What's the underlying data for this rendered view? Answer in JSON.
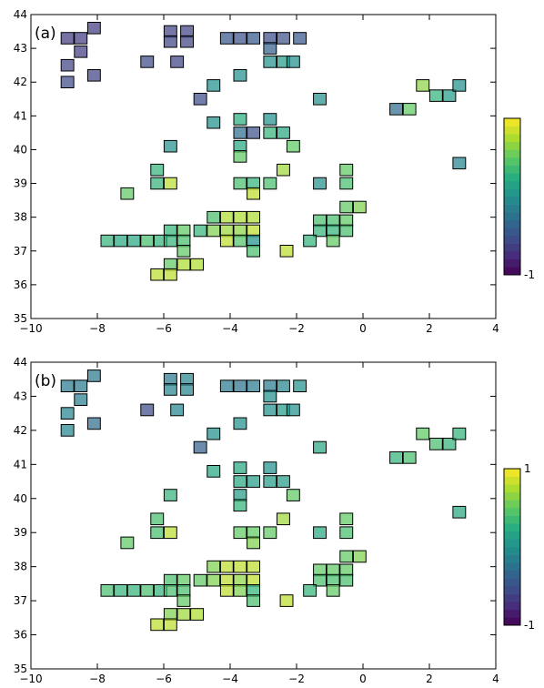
{
  "chart_data": [
    {
      "type": "heatmap",
      "panel_label": "(a)",
      "xlim": [
        -10,
        4
      ],
      "ylim": [
        35,
        44
      ],
      "x_ticks": [
        -10,
        -8,
        -6,
        -4,
        -2,
        0,
        2,
        4
      ],
      "y_ticks": [
        35,
        36,
        37,
        38,
        39,
        40,
        41,
        42,
        43,
        44
      ],
      "x_tick_labels": [
        "−10",
        "−8",
        "−6",
        "−4",
        "−2",
        "0",
        "2",
        "4"
      ],
      "y_tick_labels": [
        "35",
        "36",
        "37",
        "38",
        "39",
        "40",
        "41",
        "42",
        "43",
        "44"
      ],
      "grid": false,
      "colorbar": {
        "range": [
          -1,
          1
        ],
        "labels": [
          "",
          "-1"
        ],
        "colormap": [
          "#440154",
          "#472d7b",
          "#3b528b",
          "#2c728e",
          "#21918c",
          "#28ae80",
          "#5ec962",
          "#addc30",
          "#fde725"
        ]
      },
      "cells": [
        {
          "x": -8.9,
          "y": 43.3,
          "v": -0.65
        },
        {
          "x": -8.5,
          "y": 43.3,
          "v": -0.65
        },
        {
          "x": -8.1,
          "y": 43.6,
          "v": -0.65
        },
        {
          "x": -8.5,
          "y": 42.9,
          "v": -0.65
        },
        {
          "x": -8.9,
          "y": 42.5,
          "v": -0.6
        },
        {
          "x": -8.1,
          "y": 42.2,
          "v": -0.6
        },
        {
          "x": -8.9,
          "y": 42.0,
          "v": -0.55
        },
        {
          "x": -6.5,
          "y": 42.6,
          "v": -0.55
        },
        {
          "x": -5.8,
          "y": 43.5,
          "v": -0.6
        },
        {
          "x": -5.8,
          "y": 43.2,
          "v": -0.6
        },
        {
          "x": -5.3,
          "y": 43.5,
          "v": -0.6
        },
        {
          "x": -5.3,
          "y": 43.2,
          "v": -0.6
        },
        {
          "x": -5.6,
          "y": 42.6,
          "v": -0.6
        },
        {
          "x": -3.7,
          "y": 43.3,
          "v": -0.5
        },
        {
          "x": -4.1,
          "y": 43.3,
          "v": -0.45
        },
        {
          "x": -3.3,
          "y": 43.3,
          "v": -0.45
        },
        {
          "x": -2.8,
          "y": 43.3,
          "v": -0.55
        },
        {
          "x": -2.4,
          "y": 43.3,
          "v": -0.5
        },
        {
          "x": -1.9,
          "y": 43.3,
          "v": -0.45
        },
        {
          "x": -2.8,
          "y": 43.0,
          "v": -0.4
        },
        {
          "x": -2.8,
          "y": 42.6,
          "v": 0.0
        },
        {
          "x": -2.4,
          "y": 42.6,
          "v": 0.1
        },
        {
          "x": -2.1,
          "y": 42.6,
          "v": 0.0
        },
        {
          "x": -3.7,
          "y": 42.2,
          "v": 0.0
        },
        {
          "x": -4.5,
          "y": 41.9,
          "v": 0.0
        },
        {
          "x": -4.9,
          "y": 41.5,
          "v": -0.55
        },
        {
          "x": -1.3,
          "y": 41.5,
          "v": 0.0
        },
        {
          "x": -4.5,
          "y": 40.8,
          "v": 0.0
        },
        {
          "x": -3.7,
          "y": 40.9,
          "v": 0.25
        },
        {
          "x": -3.7,
          "y": 40.5,
          "v": -0.3
        },
        {
          "x": -3.7,
          "y": 40.1,
          "v": 0.2
        },
        {
          "x": -3.3,
          "y": 40.5,
          "v": -0.5
        },
        {
          "x": -2.8,
          "y": 40.5,
          "v": 0.3
        },
        {
          "x": -2.8,
          "y": 40.9,
          "v": 0.0
        },
        {
          "x": -2.4,
          "y": 40.5,
          "v": 0.2
        },
        {
          "x": -3.7,
          "y": 39.8,
          "v": 0.5
        },
        {
          "x": -5.8,
          "y": 40.1,
          "v": 0.0
        },
        {
          "x": -2.1,
          "y": 40.1,
          "v": 0.5
        },
        {
          "x": -3.7,
          "y": 39.0,
          "v": 0.4
        },
        {
          "x": -3.3,
          "y": 39.0,
          "v": 0.3
        },
        {
          "x": -2.8,
          "y": 39.0,
          "v": 0.4
        },
        {
          "x": -2.4,
          "y": 39.4,
          "v": 0.7
        },
        {
          "x": -3.3,
          "y": 38.7,
          "v": 0.8
        },
        {
          "x": -1.3,
          "y": 39.0,
          "v": 0.0
        },
        {
          "x": -6.2,
          "y": 39.4,
          "v": 0.3
        },
        {
          "x": -6.2,
          "y": 39.0,
          "v": 0.3
        },
        {
          "x": -5.8,
          "y": 39.0,
          "v": 0.8
        },
        {
          "x": -7.1,
          "y": 38.7,
          "v": 0.5
        },
        {
          "x": -0.5,
          "y": 39.4,
          "v": 0.5
        },
        {
          "x": -0.5,
          "y": 39.0,
          "v": 0.4
        },
        {
          "x": 1.8,
          "y": 41.9,
          "v": 0.65
        },
        {
          "x": 2.2,
          "y": 41.6,
          "v": 0.3
        },
        {
          "x": 2.6,
          "y": 41.6,
          "v": 0.1
        },
        {
          "x": 2.9,
          "y": 41.9,
          "v": 0.0
        },
        {
          "x": 1.0,
          "y": 41.2,
          "v": -0.3
        },
        {
          "x": 1.4,
          "y": 41.2,
          "v": 0.5
        },
        {
          "x": 2.9,
          "y": 39.6,
          "v": -0.1
        },
        {
          "x": -4.5,
          "y": 38.0,
          "v": 0.4
        },
        {
          "x": -4.1,
          "y": 38.0,
          "v": 0.75
        },
        {
          "x": -3.7,
          "y": 38.0,
          "v": 0.75
        },
        {
          "x": -3.3,
          "y": 38.0,
          "v": 0.75
        },
        {
          "x": -4.9,
          "y": 37.6,
          "v": 0.3
        },
        {
          "x": -4.5,
          "y": 37.6,
          "v": 0.6
        },
        {
          "x": -4.1,
          "y": 37.6,
          "v": 0.7
        },
        {
          "x": -3.7,
          "y": 37.6,
          "v": 0.65
        },
        {
          "x": -3.3,
          "y": 37.6,
          "v": 0.8
        },
        {
          "x": -4.1,
          "y": 37.3,
          "v": 0.8
        },
        {
          "x": -3.7,
          "y": 37.3,
          "v": 0.45
        },
        {
          "x": -3.3,
          "y": 37.3,
          "v": 0.0
        },
        {
          "x": -3.3,
          "y": 37.0,
          "v": 0.4
        },
        {
          "x": -2.3,
          "y": 37.0,
          "v": 0.8
        },
        {
          "x": -5.8,
          "y": 37.6,
          "v": 0.3
        },
        {
          "x": -5.4,
          "y": 37.6,
          "v": 0.5
        },
        {
          "x": -7.7,
          "y": 37.3,
          "v": 0.3
        },
        {
          "x": -7.3,
          "y": 37.3,
          "v": 0.2
        },
        {
          "x": -6.9,
          "y": 37.3,
          "v": 0.2
        },
        {
          "x": -6.5,
          "y": 37.3,
          "v": 0.4
        },
        {
          "x": -6.1,
          "y": 37.3,
          "v": 0.3
        },
        {
          "x": -5.8,
          "y": 37.3,
          "v": 0.3
        },
        {
          "x": -5.4,
          "y": 37.3,
          "v": 0.4
        },
        {
          "x": -5.4,
          "y": 37.0,
          "v": 0.5
        },
        {
          "x": -5.8,
          "y": 36.6,
          "v": 0.5
        },
        {
          "x": -5.4,
          "y": 36.6,
          "v": 0.75
        },
        {
          "x": -5.0,
          "y": 36.6,
          "v": 0.75
        },
        {
          "x": -6.2,
          "y": 36.3,
          "v": 0.8
        },
        {
          "x": -5.8,
          "y": 36.3,
          "v": 0.8
        },
        {
          "x": -1.3,
          "y": 37.9,
          "v": 0.4
        },
        {
          "x": -1.3,
          "y": 37.6,
          "v": 0.3
        },
        {
          "x": -0.9,
          "y": 37.9,
          "v": 0.4
        },
        {
          "x": -0.9,
          "y": 37.6,
          "v": 0.3
        },
        {
          "x": -0.5,
          "y": 37.9,
          "v": 0.5
        },
        {
          "x": -0.5,
          "y": 37.6,
          "v": 0.4
        },
        {
          "x": -0.9,
          "y": 37.3,
          "v": 0.5
        },
        {
          "x": -1.6,
          "y": 37.3,
          "v": 0.3
        },
        {
          "x": -0.5,
          "y": 38.3,
          "v": 0.5
        },
        {
          "x": -0.1,
          "y": 38.3,
          "v": 0.6
        }
      ]
    },
    {
      "type": "heatmap",
      "panel_label": "(b)",
      "xlim": [
        -10,
        4
      ],
      "ylim": [
        35,
        44
      ],
      "x_ticks": [
        -10,
        -8,
        -6,
        -4,
        -2,
        0,
        2,
        4
      ],
      "y_ticks": [
        35,
        36,
        37,
        38,
        39,
        40,
        41,
        42,
        43,
        44
      ],
      "x_tick_labels": [
        "−10",
        "−8",
        "−6",
        "−4",
        "−2",
        "0",
        "2",
        "4"
      ],
      "y_tick_labels": [
        "35",
        "36",
        "37",
        "38",
        "39",
        "40",
        "41",
        "42",
        "43",
        "44"
      ],
      "grid": false,
      "colorbar": {
        "range": [
          -1,
          1
        ],
        "labels": [
          "1",
          "-1"
        ],
        "colormap": [
          "#440154",
          "#472d7b",
          "#3b528b",
          "#2c728e",
          "#21918c",
          "#28ae80",
          "#5ec962",
          "#addc30",
          "#fde725"
        ]
      },
      "cells": [
        {
          "x": -8.9,
          "y": 43.3,
          "v": -0.2
        },
        {
          "x": -8.5,
          "y": 43.3,
          "v": -0.2
        },
        {
          "x": -8.1,
          "y": 43.6,
          "v": -0.2
        },
        {
          "x": -8.5,
          "y": 42.9,
          "v": -0.15
        },
        {
          "x": -8.9,
          "y": 42.5,
          "v": -0.1
        },
        {
          "x": -8.1,
          "y": 42.2,
          "v": -0.3
        },
        {
          "x": -8.9,
          "y": 42.0,
          "v": -0.1
        },
        {
          "x": -6.5,
          "y": 42.6,
          "v": -0.55
        },
        {
          "x": -5.8,
          "y": 43.5,
          "v": -0.2
        },
        {
          "x": -5.8,
          "y": 43.2,
          "v": -0.1
        },
        {
          "x": -5.3,
          "y": 43.5,
          "v": -0.1
        },
        {
          "x": -5.3,
          "y": 43.2,
          "v": -0.1
        },
        {
          "x": -5.6,
          "y": 42.6,
          "v": -0.1
        },
        {
          "x": -3.7,
          "y": 43.3,
          "v": -0.25
        },
        {
          "x": -4.1,
          "y": 43.3,
          "v": -0.2
        },
        {
          "x": -3.3,
          "y": 43.3,
          "v": -0.2
        },
        {
          "x": -2.8,
          "y": 43.3,
          "v": -0.2
        },
        {
          "x": -2.4,
          "y": 43.3,
          "v": -0.1
        },
        {
          "x": -1.9,
          "y": 43.3,
          "v": 0.0
        },
        {
          "x": -2.8,
          "y": 43.0,
          "v": 0.0
        },
        {
          "x": -2.8,
          "y": 42.6,
          "v": 0.0
        },
        {
          "x": -2.4,
          "y": 42.6,
          "v": 0.1
        },
        {
          "x": -2.1,
          "y": 42.6,
          "v": 0.0
        },
        {
          "x": -3.7,
          "y": 42.2,
          "v": 0.0
        },
        {
          "x": -4.5,
          "y": 41.9,
          "v": 0.0
        },
        {
          "x": -4.9,
          "y": 41.5,
          "v": -0.4
        },
        {
          "x": -1.3,
          "y": 41.5,
          "v": 0.2
        },
        {
          "x": -4.5,
          "y": 40.8,
          "v": 0.2
        },
        {
          "x": -3.7,
          "y": 40.9,
          "v": 0.2
        },
        {
          "x": -3.7,
          "y": 40.5,
          "v": 0.2
        },
        {
          "x": -3.7,
          "y": 40.1,
          "v": 0.1
        },
        {
          "x": -3.3,
          "y": 40.5,
          "v": 0.1
        },
        {
          "x": -2.8,
          "y": 40.5,
          "v": 0.1
        },
        {
          "x": -2.8,
          "y": 40.9,
          "v": 0.0
        },
        {
          "x": -2.4,
          "y": 40.5,
          "v": 0.1
        },
        {
          "x": -3.7,
          "y": 39.8,
          "v": 0.3
        },
        {
          "x": -5.8,
          "y": 40.1,
          "v": 0.3
        },
        {
          "x": -2.1,
          "y": 40.1,
          "v": 0.5
        },
        {
          "x": -3.7,
          "y": 39.0,
          "v": 0.5
        },
        {
          "x": -3.3,
          "y": 39.0,
          "v": 0.5
        },
        {
          "x": -2.8,
          "y": 39.0,
          "v": 0.5
        },
        {
          "x": -2.4,
          "y": 39.4,
          "v": 0.7
        },
        {
          "x": -3.3,
          "y": 38.7,
          "v": 0.6
        },
        {
          "x": -1.3,
          "y": 39.0,
          "v": 0.2
        },
        {
          "x": -6.2,
          "y": 39.4,
          "v": 0.4
        },
        {
          "x": -6.2,
          "y": 39.0,
          "v": 0.4
        },
        {
          "x": -5.8,
          "y": 39.0,
          "v": 0.8
        },
        {
          "x": -7.1,
          "y": 38.7,
          "v": 0.5
        },
        {
          "x": -0.5,
          "y": 39.4,
          "v": 0.5
        },
        {
          "x": -0.5,
          "y": 39.0,
          "v": 0.4
        },
        {
          "x": 1.8,
          "y": 41.9,
          "v": 0.5
        },
        {
          "x": 2.2,
          "y": 41.6,
          "v": 0.4
        },
        {
          "x": 2.6,
          "y": 41.6,
          "v": 0.3
        },
        {
          "x": 2.9,
          "y": 41.9,
          "v": 0.3
        },
        {
          "x": 1.0,
          "y": 41.2,
          "v": 0.3
        },
        {
          "x": 1.4,
          "y": 41.2,
          "v": 0.4
        },
        {
          "x": 2.9,
          "y": 39.6,
          "v": 0.2
        },
        {
          "x": -4.5,
          "y": 38.0,
          "v": 0.6
        },
        {
          "x": -4.1,
          "y": 38.0,
          "v": 0.8
        },
        {
          "x": -3.7,
          "y": 38.0,
          "v": 0.8
        },
        {
          "x": -3.3,
          "y": 38.0,
          "v": 0.8
        },
        {
          "x": -4.9,
          "y": 37.6,
          "v": 0.5
        },
        {
          "x": -4.5,
          "y": 37.6,
          "v": 0.6
        },
        {
          "x": -4.1,
          "y": 37.6,
          "v": 0.8
        },
        {
          "x": -3.7,
          "y": 37.6,
          "v": 0.65
        },
        {
          "x": -3.3,
          "y": 37.6,
          "v": 0.8
        },
        {
          "x": -4.1,
          "y": 37.3,
          "v": 0.8
        },
        {
          "x": -3.7,
          "y": 37.3,
          "v": 0.6
        },
        {
          "x": -3.3,
          "y": 37.3,
          "v": 0.3
        },
        {
          "x": -3.3,
          "y": 37.0,
          "v": 0.4
        },
        {
          "x": -2.3,
          "y": 37.0,
          "v": 0.8
        },
        {
          "x": -5.8,
          "y": 37.6,
          "v": 0.4
        },
        {
          "x": -5.4,
          "y": 37.6,
          "v": 0.5
        },
        {
          "x": -7.7,
          "y": 37.3,
          "v": 0.4
        },
        {
          "x": -7.3,
          "y": 37.3,
          "v": 0.3
        },
        {
          "x": -6.9,
          "y": 37.3,
          "v": 0.3
        },
        {
          "x": -6.5,
          "y": 37.3,
          "v": 0.4
        },
        {
          "x": -6.1,
          "y": 37.3,
          "v": 0.3
        },
        {
          "x": -5.8,
          "y": 37.3,
          "v": 0.4
        },
        {
          "x": -5.4,
          "y": 37.3,
          "v": 0.4
        },
        {
          "x": -5.4,
          "y": 37.0,
          "v": 0.5
        },
        {
          "x": -5.8,
          "y": 36.6,
          "v": 0.6
        },
        {
          "x": -5.4,
          "y": 36.6,
          "v": 0.7
        },
        {
          "x": -5.0,
          "y": 36.6,
          "v": 0.75
        },
        {
          "x": -6.2,
          "y": 36.3,
          "v": 0.8
        },
        {
          "x": -5.8,
          "y": 36.3,
          "v": 0.8
        },
        {
          "x": -1.3,
          "y": 37.9,
          "v": 0.5
        },
        {
          "x": -1.3,
          "y": 37.6,
          "v": 0.4
        },
        {
          "x": -0.9,
          "y": 37.9,
          "v": 0.5
        },
        {
          "x": -0.9,
          "y": 37.6,
          "v": 0.4
        },
        {
          "x": -0.5,
          "y": 37.9,
          "v": 0.5
        },
        {
          "x": -0.5,
          "y": 37.6,
          "v": 0.4
        },
        {
          "x": -0.9,
          "y": 37.3,
          "v": 0.5
        },
        {
          "x": -1.6,
          "y": 37.3,
          "v": 0.3
        },
        {
          "x": -0.5,
          "y": 38.3,
          "v": 0.5
        },
        {
          "x": -0.1,
          "y": 38.3,
          "v": 0.6
        }
      ]
    }
  ]
}
